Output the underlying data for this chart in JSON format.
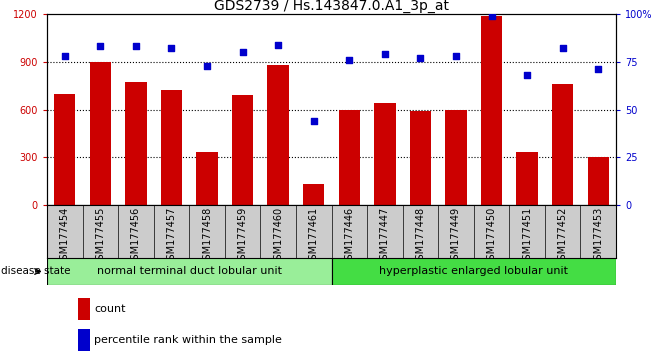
{
  "title": "GDS2739 / Hs.143847.0.A1_3p_at",
  "categories": [
    "GSM177454",
    "GSM177455",
    "GSM177456",
    "GSM177457",
    "GSM177458",
    "GSM177459",
    "GSM177460",
    "GSM177461",
    "GSM177446",
    "GSM177447",
    "GSM177448",
    "GSM177449",
    "GSM177450",
    "GSM177451",
    "GSM177452",
    "GSM177453"
  ],
  "bar_values": [
    700,
    900,
    770,
    720,
    330,
    690,
    880,
    130,
    600,
    640,
    590,
    600,
    1190,
    330,
    760,
    300
  ],
  "dot_values": [
    78,
    83,
    83,
    82,
    73,
    80,
    84,
    44,
    76,
    79,
    77,
    78,
    99,
    68,
    82,
    71
  ],
  "bar_color": "#cc0000",
  "dot_color": "#0000cc",
  "ylim_left": [
    0,
    1200
  ],
  "ylim_right": [
    0,
    100
  ],
  "yticks_left": [
    0,
    300,
    600,
    900,
    1200
  ],
  "yticks_right": [
    0,
    25,
    50,
    75,
    100
  ],
  "yticklabels_right": [
    "0",
    "25",
    "50",
    "75",
    "100%"
  ],
  "group1_label": "normal terminal duct lobular unit",
  "group2_label": "hyperplastic enlarged lobular unit",
  "group1_count": 8,
  "group2_count": 8,
  "disease_state_label": "disease state",
  "legend_bar_label": "count",
  "legend_dot_label": "percentile rank within the sample",
  "group1_color": "#99ee99",
  "group2_color": "#44dd44",
  "cell_bg_color": "#cccccc",
  "title_fontsize": 10,
  "tick_fontsize": 7,
  "label_fontsize": 8,
  "background_color": "#ffffff",
  "plot_bg_color": "#ffffff",
  "tick_label_color_left": "#cc0000",
  "tick_label_color_right": "#0000cc",
  "grid_color": "#000000",
  "grid_linestyle": "dotted",
  "grid_linewidth": 0.8
}
